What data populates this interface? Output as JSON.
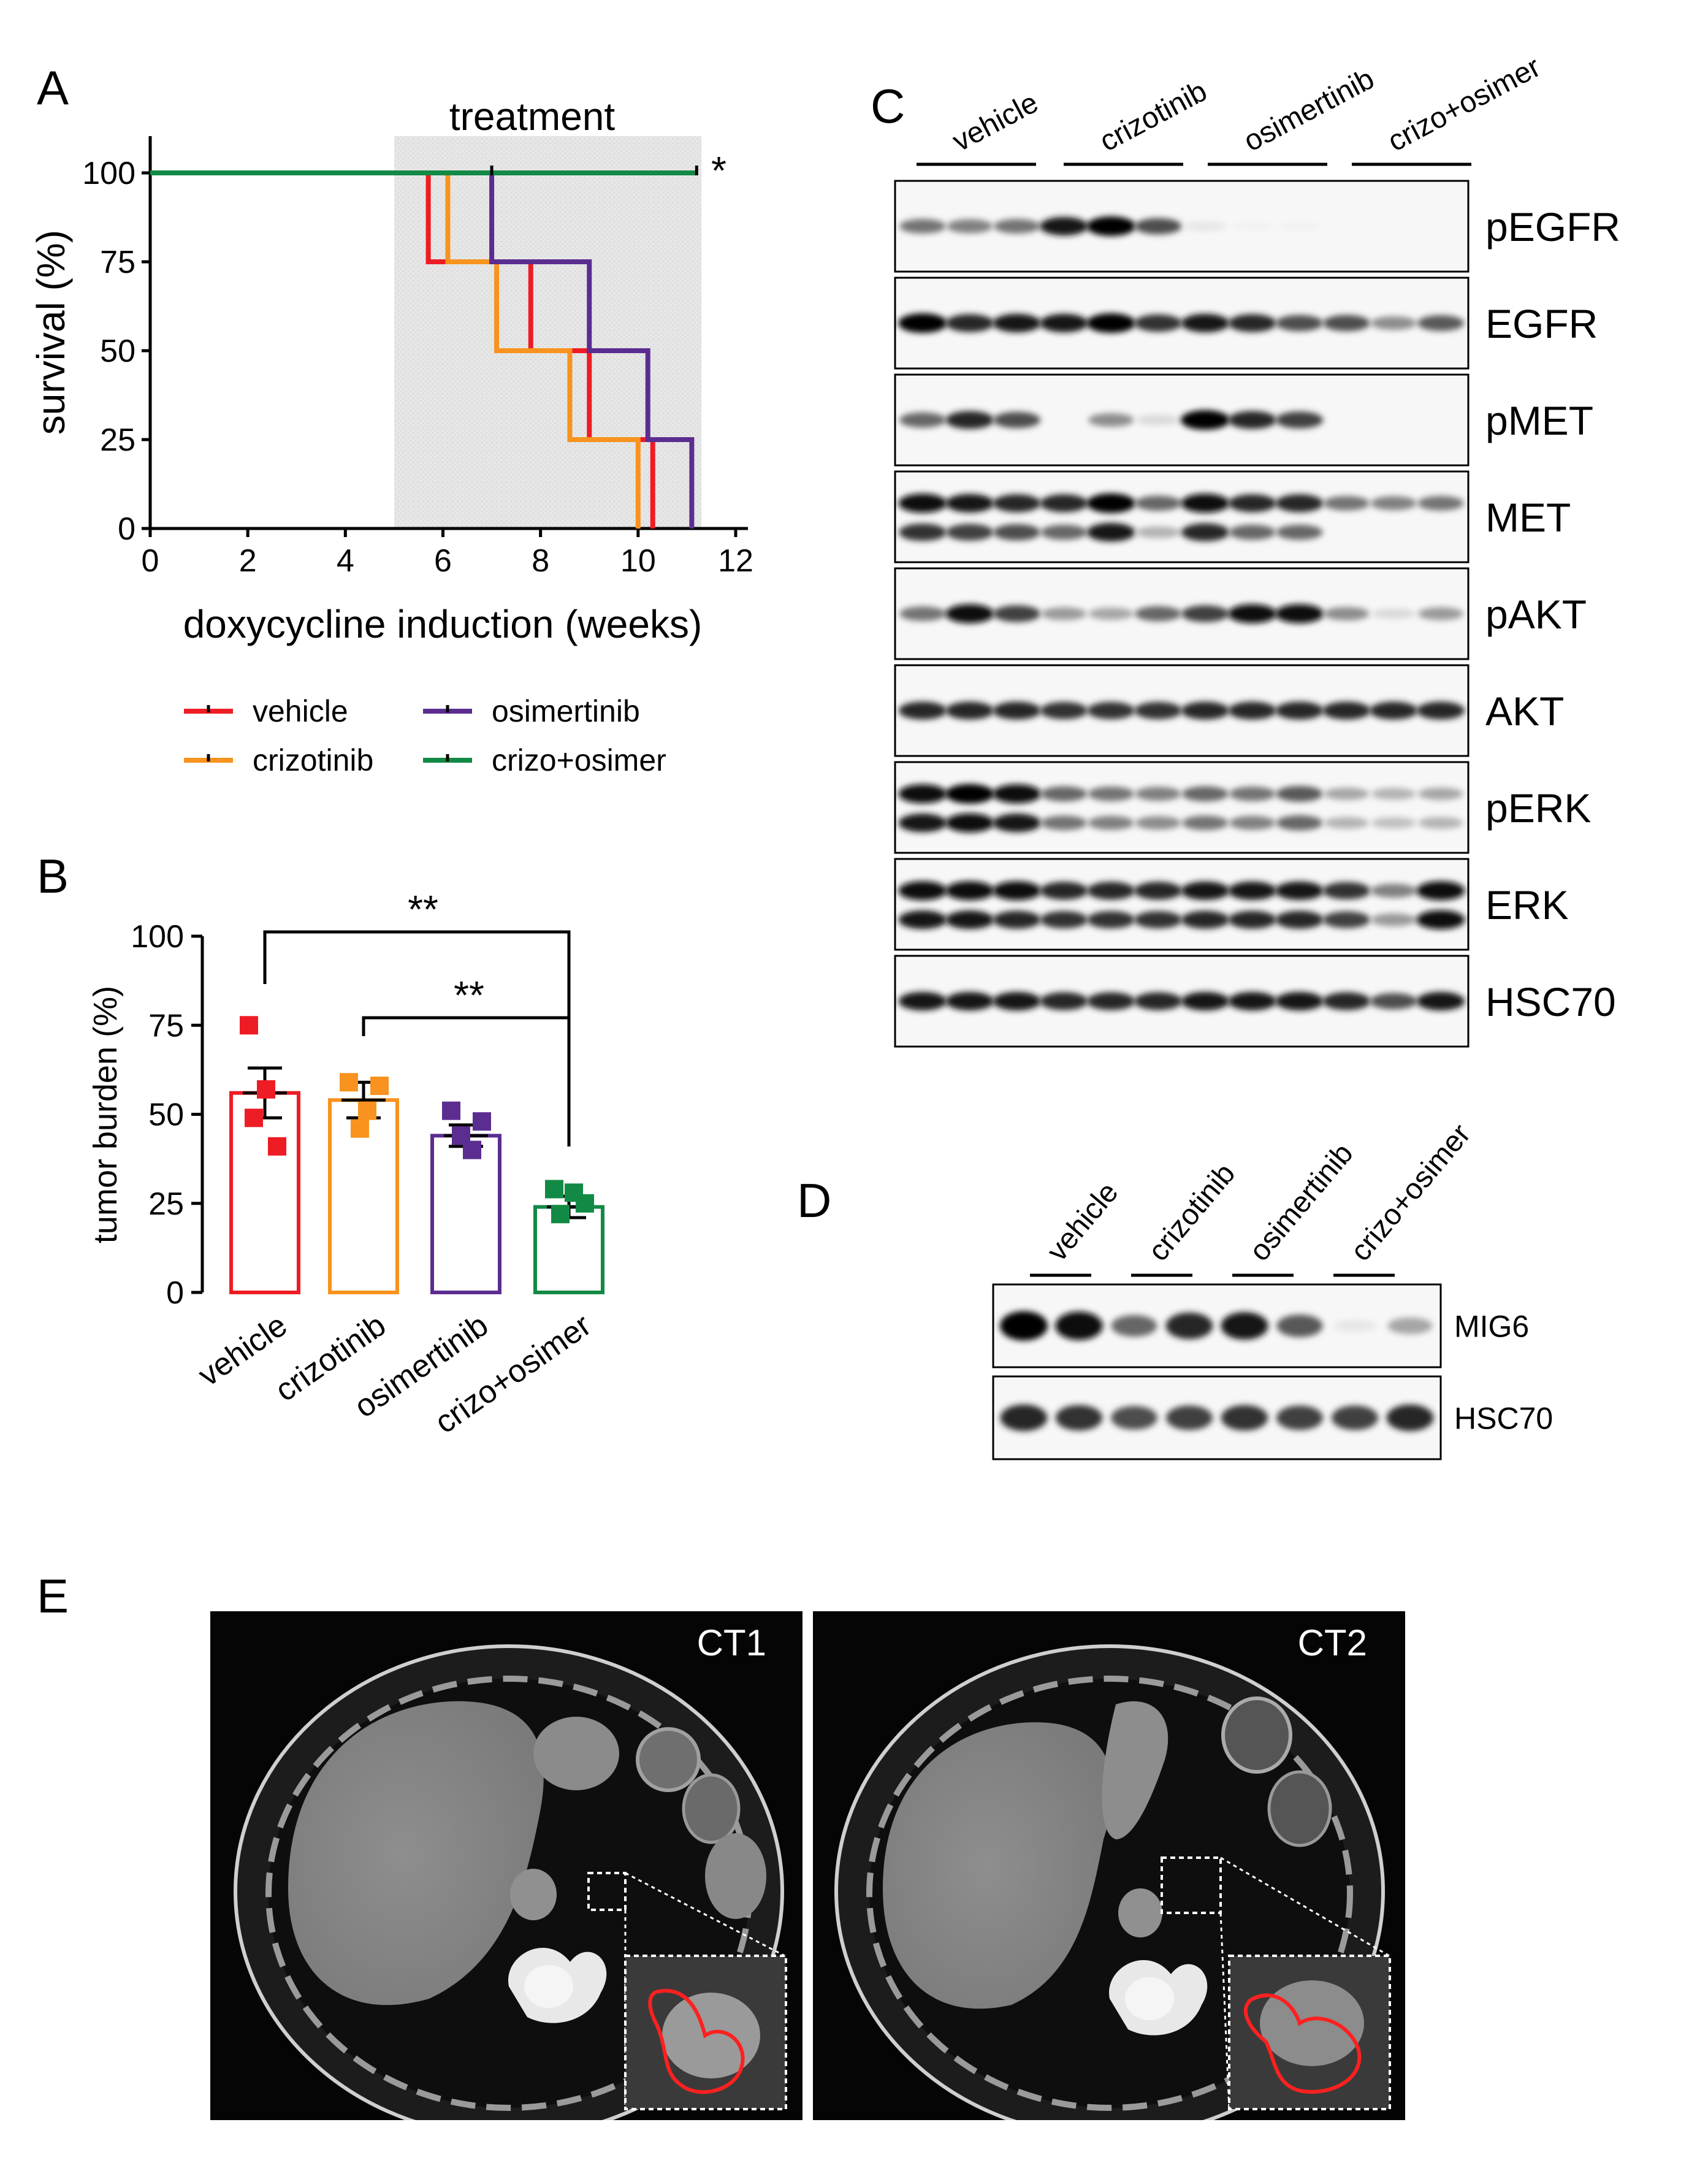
{
  "panels": {
    "A": {
      "letter": "A",
      "shade_label": "treatment",
      "sig_star": "*",
      "xlabel": "doxycycline induction (weeks)",
      "ylabel": "survival (%)"
    },
    "B": {
      "letter": "B",
      "ylabel": "tumor burden (%)",
      "sig_top": "**",
      "sig_lower": "**"
    },
    "C": {
      "letter": "C",
      "groups": [
        "vehicle",
        "crizotinib",
        "osimertinib",
        "crizo+osimer"
      ],
      "rows": [
        "pEGFR",
        "EGFR",
        "pMET",
        "MET",
        "pAKT",
        "AKT",
        "pERK",
        "ERK",
        "HSC70"
      ]
    },
    "D": {
      "letter": "D",
      "groups": [
        "vehicle",
        "crizotinib",
        "osimertinib",
        "crizo+osimer"
      ],
      "rows": [
        "MIG6",
        "HSC70"
      ]
    },
    "E": {
      "letter": "E",
      "scan1": "CT1",
      "scan2": "CT2"
    }
  },
  "colors": {
    "vehicle": "#ee1c24",
    "crizotinib": "#f7931e",
    "osimertinib": "#5b2d91",
    "crizo+osimer": "#128a45",
    "outline_roi": "#ff2020"
  },
  "chart_data": [
    {
      "type": "line",
      "panel": "A",
      "step": true,
      "title": "",
      "xlabel": "doxycycline induction (weeks)",
      "ylabel": "survival (%)",
      "xlim": [
        0,
        12
      ],
      "ylim": [
        0,
        100
      ],
      "xticks": [
        0,
        2,
        4,
        6,
        8,
        10,
        12
      ],
      "yticks": [
        0,
        25,
        50,
        75,
        100
      ],
      "shaded_region": {
        "label": "treatment",
        "x": [
          5,
          11.3
        ]
      },
      "legend": "bottom",
      "series": [
        {
          "name": "vehicle",
          "x": [
            0,
            5.7,
            5.7,
            7.8,
            7.8,
            9.0,
            9.0,
            10.3,
            10.3
          ],
          "y": [
            100,
            100,
            75,
            75,
            50,
            50,
            25,
            25,
            0
          ]
        },
        {
          "name": "crizotinib",
          "x": [
            0,
            6.1,
            6.1,
            7.1,
            7.1,
            8.6,
            8.6,
            10.0,
            10.0
          ],
          "y": [
            100,
            100,
            75,
            75,
            50,
            50,
            25,
            25,
            0
          ]
        },
        {
          "name": "osimertinib",
          "x": [
            0,
            7.0,
            7.0,
            9.0,
            9.0,
            10.2,
            10.2,
            11.1,
            11.1
          ],
          "y": [
            100,
            100,
            75,
            75,
            50,
            50,
            25,
            25,
            0
          ]
        },
        {
          "name": "crizo+osimer",
          "x": [
            0,
            11.2
          ],
          "y": [
            100,
            100
          ]
        }
      ]
    },
    {
      "type": "bar",
      "panel": "B",
      "title": "",
      "xlabel": "",
      "ylabel": "tumor burden (%)",
      "ylim": [
        0,
        100
      ],
      "yticks": [
        0,
        25,
        50,
        75,
        100
      ],
      "categories": [
        "vehicle",
        "crizotinib",
        "osimertinib",
        "crizo+osimer"
      ],
      "values": [
        56,
        54,
        44,
        24
      ],
      "sem": [
        7,
        5,
        3,
        3
      ],
      "points": [
        [
          75,
          57,
          49,
          41
        ],
        [
          59,
          58,
          51,
          46
        ],
        [
          51,
          48,
          44,
          40
        ],
        [
          29,
          28,
          25,
          22
        ]
      ],
      "comparisons": [
        {
          "from": "vehicle",
          "to": "crizo+osimer",
          "label": "**"
        },
        {
          "from": "crizotinib",
          "to": "crizo+osimer",
          "label": "**"
        }
      ]
    }
  ]
}
